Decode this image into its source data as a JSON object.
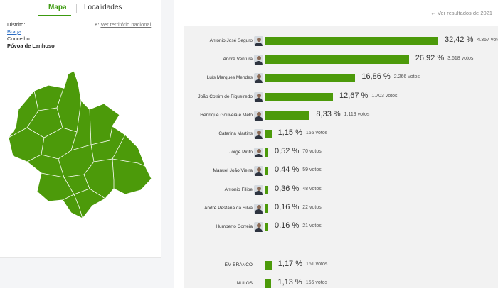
{
  "tabs": {
    "map": "Mapa",
    "localities": "Localidades"
  },
  "location": {
    "district_label": "Distrito:",
    "district_value": "Braga",
    "municipality_label": "Concelho:",
    "municipality_value": "Póvoa de Lanhoso",
    "national_link": "Ver território nacional",
    "national_icon": "undo-arrow-icon"
  },
  "map": {
    "fill_color": "#4c9a0a",
    "border_color": "#ffffff"
  },
  "results": {
    "previous_link": "Ver resultados de 2021",
    "previous_icon": "left-arrow-icon",
    "bar_color": "#4c9a0a",
    "votes_suffix": "votos",
    "candidates": [
      {
        "name": "António José Seguro",
        "pct_value": 32.42,
        "pct": "32,42 %",
        "votes": "4.357"
      },
      {
        "name": "André Ventura",
        "pct_value": 26.92,
        "pct": "26,92 %",
        "votes": "3.618"
      },
      {
        "name": "Luís Marques Mendes",
        "pct_value": 16.86,
        "pct": "16,86 %",
        "votes": "2.266"
      },
      {
        "name": "João Cotrim de Figueiredo",
        "pct_value": 12.67,
        "pct": "12,67 %",
        "votes": "1.703"
      },
      {
        "name": "Henrique Gouveia e Melo",
        "pct_value": 8.33,
        "pct": "8,33 %",
        "votes": "1.119"
      },
      {
        "name": "Catarina Martins",
        "pct_value": 1.15,
        "pct": "1,15 %",
        "votes": "155"
      },
      {
        "name": "Jorge Pinto",
        "pct_value": 0.52,
        "pct": "0,52 %",
        "votes": "70"
      },
      {
        "name": "Manuel João Vieira",
        "pct_value": 0.44,
        "pct": "0,44 %",
        "votes": "59"
      },
      {
        "name": "António Filipe",
        "pct_value": 0.36,
        "pct": "0,36 %",
        "votes": "48"
      },
      {
        "name": "André Pestana da Silva",
        "pct_value": 0.16,
        "pct": "0,16 %",
        "votes": "22"
      },
      {
        "name": "Humberto Correia",
        "pct_value": 0.16,
        "pct": "0,16 %",
        "votes": "21"
      }
    ],
    "special": [
      {
        "name": "EM BRANCO",
        "pct_value": 1.17,
        "pct": "1,17 %",
        "votes": "161"
      },
      {
        "name": "NULOS",
        "pct_value": 1.13,
        "pct": "1,13 %",
        "votes": "155"
      }
    ]
  }
}
